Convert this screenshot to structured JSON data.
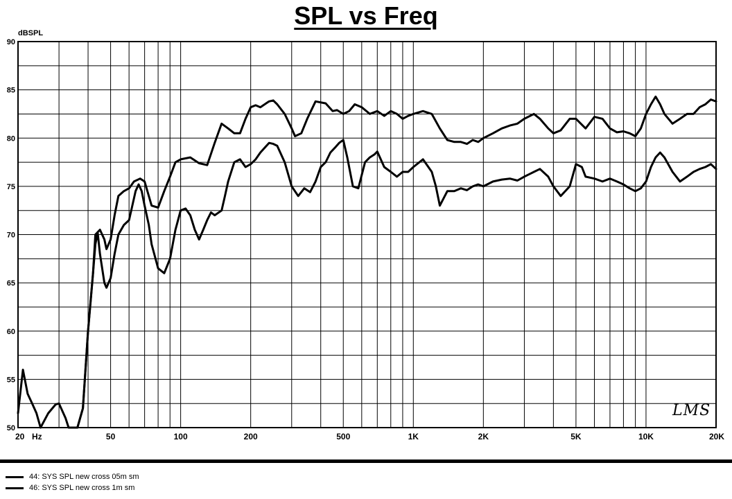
{
  "chart_data": {
    "type": "line",
    "title": "SPL vs Freq",
    "ylabel": "dBSPL",
    "xlabel": "",
    "x_scale": "log",
    "xlim": [
      20,
      20000
    ],
    "ylim": [
      50,
      90
    ],
    "grid": true,
    "legend_position": "bottom-left",
    "x_tick_labels": [
      {
        "value": 20,
        "label": "20"
      },
      {
        "value": 50,
        "label": "50"
      },
      {
        "value": 100,
        "label": "100"
      },
      {
        "value": 200,
        "label": "200"
      },
      {
        "value": 500,
        "label": "500"
      },
      {
        "value": 1000,
        "label": "1K"
      },
      {
        "value": 2000,
        "label": "2K"
      },
      {
        "value": 5000,
        "label": "5K"
      },
      {
        "value": 10000,
        "label": "10K"
      },
      {
        "value": 20000,
        "label": "20K"
      }
    ],
    "x_unit_label": "Hz",
    "y_ticks": [
      50,
      55,
      60,
      65,
      70,
      75,
      80,
      85,
      90
    ],
    "series": [
      {
        "name": "44: SYS SPL new cross 05m sm",
        "color": "#000000",
        "x": [
          20,
          21,
          22,
          23,
          24,
          25,
          27,
          29,
          30,
          32,
          33,
          35,
          36,
          38,
          40,
          42,
          43,
          45,
          47,
          48,
          50,
          52,
          54,
          57,
          60,
          63,
          67,
          70,
          73,
          75,
          80,
          85,
          90,
          95,
          100,
          110,
          120,
          130,
          140,
          150,
          160,
          170,
          180,
          190,
          200,
          210,
          220,
          240,
          250,
          260,
          280,
          300,
          310,
          330,
          350,
          380,
          420,
          450,
          470,
          500,
          530,
          560,
          600,
          650,
          700,
          750,
          800,
          850,
          900,
          950,
          1000,
          1100,
          1200,
          1300,
          1400,
          1500,
          1600,
          1700,
          1800,
          1900,
          2000,
          2200,
          2400,
          2600,
          2800,
          3000,
          3300,
          3500,
          3800,
          4000,
          4300,
          4700,
          5000,
          5500,
          6000,
          6500,
          7000,
          7500,
          8000,
          8500,
          9000,
          9500,
          10000,
          10500,
          11000,
          11500,
          12000,
          13000,
          14000,
          15000,
          16000,
          17000,
          18000,
          19000,
          20000
        ],
        "y": [
          51.5,
          56.0,
          53.5,
          52.5,
          51.5,
          50.0,
          51.5,
          52.4,
          52.5,
          51.0,
          50.0,
          50.0,
          50.0,
          52.0,
          60.0,
          66.0,
          70.0,
          70.5,
          69.5,
          68.5,
          69.5,
          72.0,
          74.0,
          74.5,
          74.8,
          75.5,
          75.8,
          75.5,
          74.0,
          73.0,
          72.8,
          74.5,
          76.0,
          77.5,
          77.8,
          78.0,
          77.4,
          77.2,
          79.5,
          81.5,
          81.0,
          80.5,
          80.5,
          82.0,
          83.2,
          83.4,
          83.2,
          83.8,
          83.9,
          83.5,
          82.5,
          81.0,
          80.2,
          80.5,
          82.0,
          83.8,
          83.6,
          82.8,
          82.9,
          82.5,
          82.8,
          83.5,
          83.2,
          82.5,
          82.8,
          82.3,
          82.8,
          82.5,
          82.0,
          82.3,
          82.5,
          82.8,
          82.5,
          81.0,
          79.8,
          79.6,
          79.6,
          79.4,
          79.8,
          79.6,
          80.0,
          80.5,
          81.0,
          81.3,
          81.5,
          82.0,
          82.5,
          82.0,
          81.0,
          80.5,
          80.8,
          82.0,
          82.0,
          81.0,
          82.2,
          82.0,
          81.0,
          80.6,
          80.7,
          80.5,
          80.2,
          81.0,
          82.5,
          83.5,
          84.3,
          83.5,
          82.5,
          81.5,
          82.0,
          82.5,
          82.5,
          83.2,
          83.5,
          84.0,
          83.8
        ]
      },
      {
        "name": "46: SYS SPL new cross 1m sm",
        "color": "#000000",
        "x": [
          36,
          38,
          40,
          42,
          43,
          44,
          45,
          46,
          47,
          48,
          50,
          52,
          54,
          57,
          60,
          62,
          64,
          66,
          68,
          70,
          73,
          75,
          80,
          85,
          90,
          95,
          100,
          105,
          110,
          115,
          120,
          125,
          130,
          135,
          140,
          150,
          155,
          160,
          170,
          180,
          190,
          200,
          210,
          220,
          240,
          250,
          260,
          280,
          300,
          320,
          340,
          360,
          380,
          400,
          420,
          440,
          460,
          480,
          500,
          520,
          550,
          580,
          620,
          650,
          680,
          700,
          750,
          800,
          850,
          900,
          950,
          1000,
          1100,
          1200,
          1250,
          1300,
          1400,
          1500,
          1600,
          1700,
          1800,
          1900,
          2000,
          2200,
          2400,
          2600,
          2800,
          3000,
          3300,
          3500,
          3800,
          4000,
          4300,
          4700,
          5000,
          5300,
          5500,
          6000,
          6500,
          7000,
          7500,
          8000,
          8500,
          9000,
          9500,
          10000,
          10500,
          11000,
          11500,
          12000,
          13000,
          14000,
          15000,
          16000,
          17000,
          18000,
          19000,
          20000
        ],
        "y": [
          50.0,
          52.0,
          60.0,
          66.0,
          69.0,
          70.2,
          68.0,
          66.5,
          65.0,
          64.5,
          65.5,
          68.0,
          70.0,
          71.0,
          71.5,
          73.0,
          74.5,
          75.2,
          74.5,
          73.0,
          71.0,
          69.0,
          66.5,
          66.0,
          67.5,
          70.5,
          72.5,
          72.7,
          72.0,
          70.5,
          69.5,
          70.5,
          71.5,
          72.3,
          72.0,
          72.5,
          74.0,
          75.5,
          77.5,
          77.8,
          77.0,
          77.3,
          77.8,
          78.5,
          79.5,
          79.4,
          79.2,
          77.5,
          75.0,
          74.0,
          74.8,
          74.4,
          75.5,
          77.0,
          77.5,
          78.5,
          79.0,
          79.5,
          79.8,
          78.0,
          75.0,
          74.8,
          77.5,
          78.0,
          78.3,
          78.6,
          77.0,
          76.5,
          76.0,
          76.5,
          76.5,
          77.0,
          77.8,
          76.5,
          75.0,
          73.0,
          74.5,
          74.5,
          74.8,
          74.6,
          75.0,
          75.2,
          75.0,
          75.5,
          75.7,
          75.8,
          75.6,
          76.0,
          76.5,
          76.8,
          76.0,
          75.0,
          74.0,
          75.0,
          77.3,
          77.0,
          76.0,
          75.8,
          75.5,
          75.8,
          75.5,
          75.2,
          74.8,
          74.5,
          74.8,
          75.5,
          77.0,
          78.0,
          78.5,
          78.0,
          76.5,
          75.5,
          76.0,
          76.5,
          76.8,
          77.0,
          77.3,
          76.8
        ]
      }
    ]
  },
  "signature": "LMS"
}
